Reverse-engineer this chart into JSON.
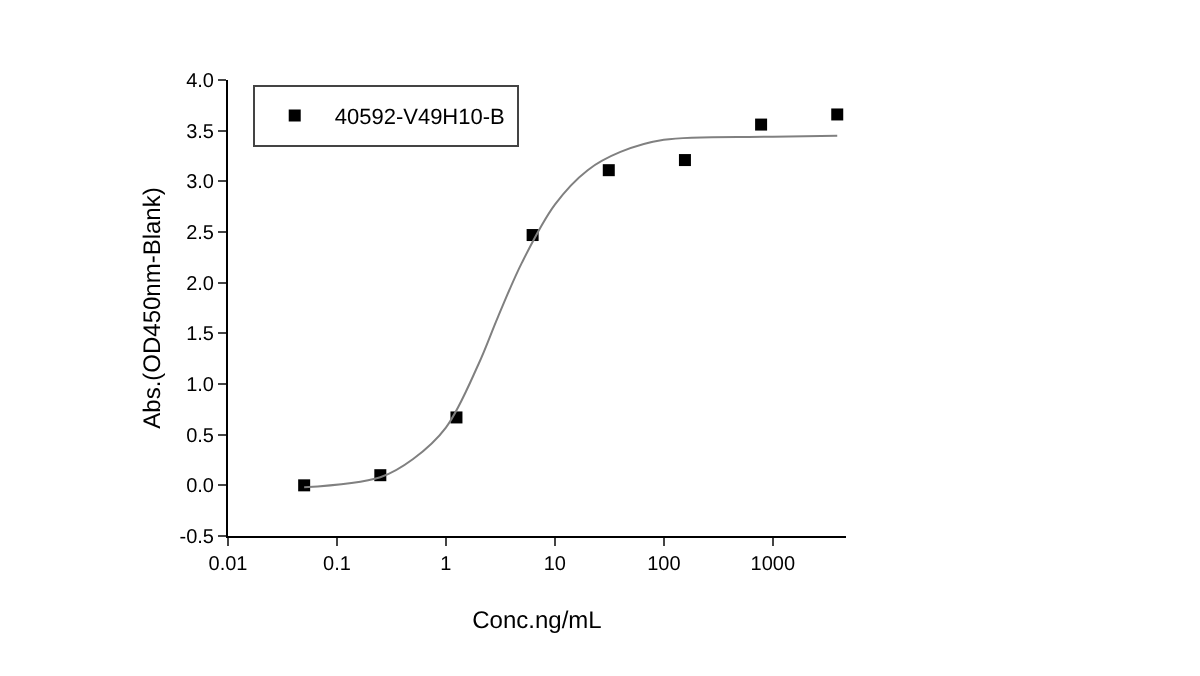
{
  "chart_data": {
    "type": "scatter",
    "xlabel": "Conc.ng/mL",
    "ylabel": "Abs.(OD450nm-Blank)",
    "log": "x",
    "grid": false,
    "legend": "top left",
    "xlim": [
      0.01,
      4700
    ],
    "xticks": [
      0.01,
      0.1,
      1,
      10,
      100,
      1000
    ],
    "ylim": [
      -0.5,
      4.0
    ],
    "yticks": [
      {
        "value": -0.5,
        "label": "-0.5"
      },
      {
        "value": 0,
        "label": "0.0"
      },
      {
        "value": 0.5,
        "label": "0.5"
      },
      {
        "value": 1,
        "label": "1.0"
      },
      {
        "value": 1.5,
        "label": "1.5"
      },
      {
        "value": 2,
        "label": "2.0"
      },
      {
        "value": 2.5,
        "label": "2.5"
      },
      {
        "value": 3,
        "label": "3.0"
      },
      {
        "value": 3.5,
        "label": "3.5"
      },
      {
        "value": 4,
        "label": "4.0"
      }
    ],
    "series": [
      {
        "name": "40592-V49H10-B",
        "marker": "square",
        "color": "#000000",
        "x": [
          0.05,
          0.25,
          1.25,
          6.25,
          31.25,
          156.25,
          781.25,
          3906.25
        ],
        "values": [
          0.0,
          0.1,
          0.67,
          2.47,
          3.11,
          3.21,
          3.56,
          3.66
        ]
      },
      {
        "type": "line",
        "color": "#808080",
        "x": [
          0.05,
          0.25,
          0.5,
          1,
          2,
          3,
          5,
          10,
          20,
          40,
          100,
          1000,
          3906.25
        ],
        "values": [
          -0.02,
          0.08,
          0.26,
          0.57,
          1.2,
          1.66,
          2.2,
          2.77,
          3.11,
          3.29,
          3.41,
          3.44,
          3.45
        ]
      }
    ]
  }
}
